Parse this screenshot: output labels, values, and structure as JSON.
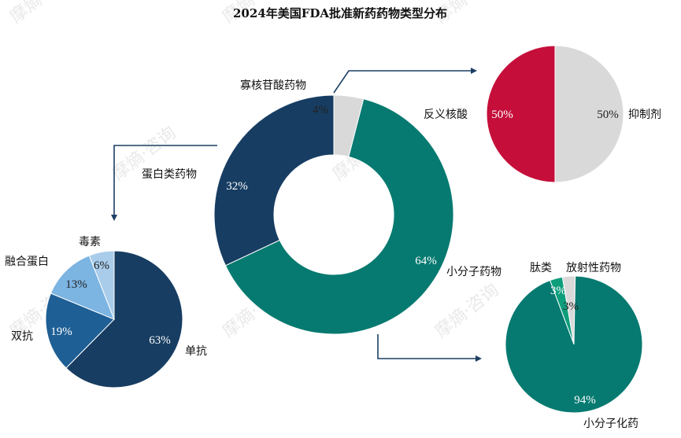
{
  "chart_data": [
    {
      "id": "main",
      "type": "pie",
      "title": "2024年美国FDA批准新药药物类型分布",
      "slices": [
        {
          "label": "小分子药物",
          "value": 64,
          "pct_label": "64%",
          "color": "#067A70"
        },
        {
          "label": "蛋白类药物",
          "value": 32,
          "pct_label": "32%",
          "color": "#173D62"
        },
        {
          "label": "寡核苷酸药物",
          "value": 4,
          "pct_label": "4%",
          "color": "#D9D9D9"
        }
      ]
    },
    {
      "id": "protein",
      "type": "pie",
      "slices": [
        {
          "label": "单抗",
          "value": 63,
          "pct_label": "63%",
          "color": "#173D62"
        },
        {
          "label": "双抗",
          "value": 19,
          "pct_label": "19%",
          "color": "#1E5F95"
        },
        {
          "label": "融合蛋白",
          "value": 13,
          "pct_label": "13%",
          "color": "#7CB4E2"
        },
        {
          "label": "毒素",
          "value": 6,
          "pct_label": "6%",
          "color": "#A9CCEA"
        }
      ]
    },
    {
      "id": "oligo",
      "type": "pie",
      "slices": [
        {
          "label": "抑制剂",
          "value": 50,
          "pct_label": "50%",
          "color": "#D9D9D9"
        },
        {
          "label": "反义核酸",
          "value": 50,
          "pct_label": "50%",
          "color": "#C50F3A"
        }
      ]
    },
    {
      "id": "small",
      "type": "pie",
      "slices": [
        {
          "label": "小分子化药",
          "value": 94,
          "pct_label": "94%",
          "color": "#067A70"
        },
        {
          "label": "肽类",
          "value": 3,
          "pct_label": "3%",
          "color": "#0E9E7C"
        },
        {
          "label": "放射性药物",
          "value": 3,
          "pct_label": "3%",
          "color": "#D9D9D9"
        }
      ]
    }
  ],
  "watermark": "摩熵·咨询"
}
